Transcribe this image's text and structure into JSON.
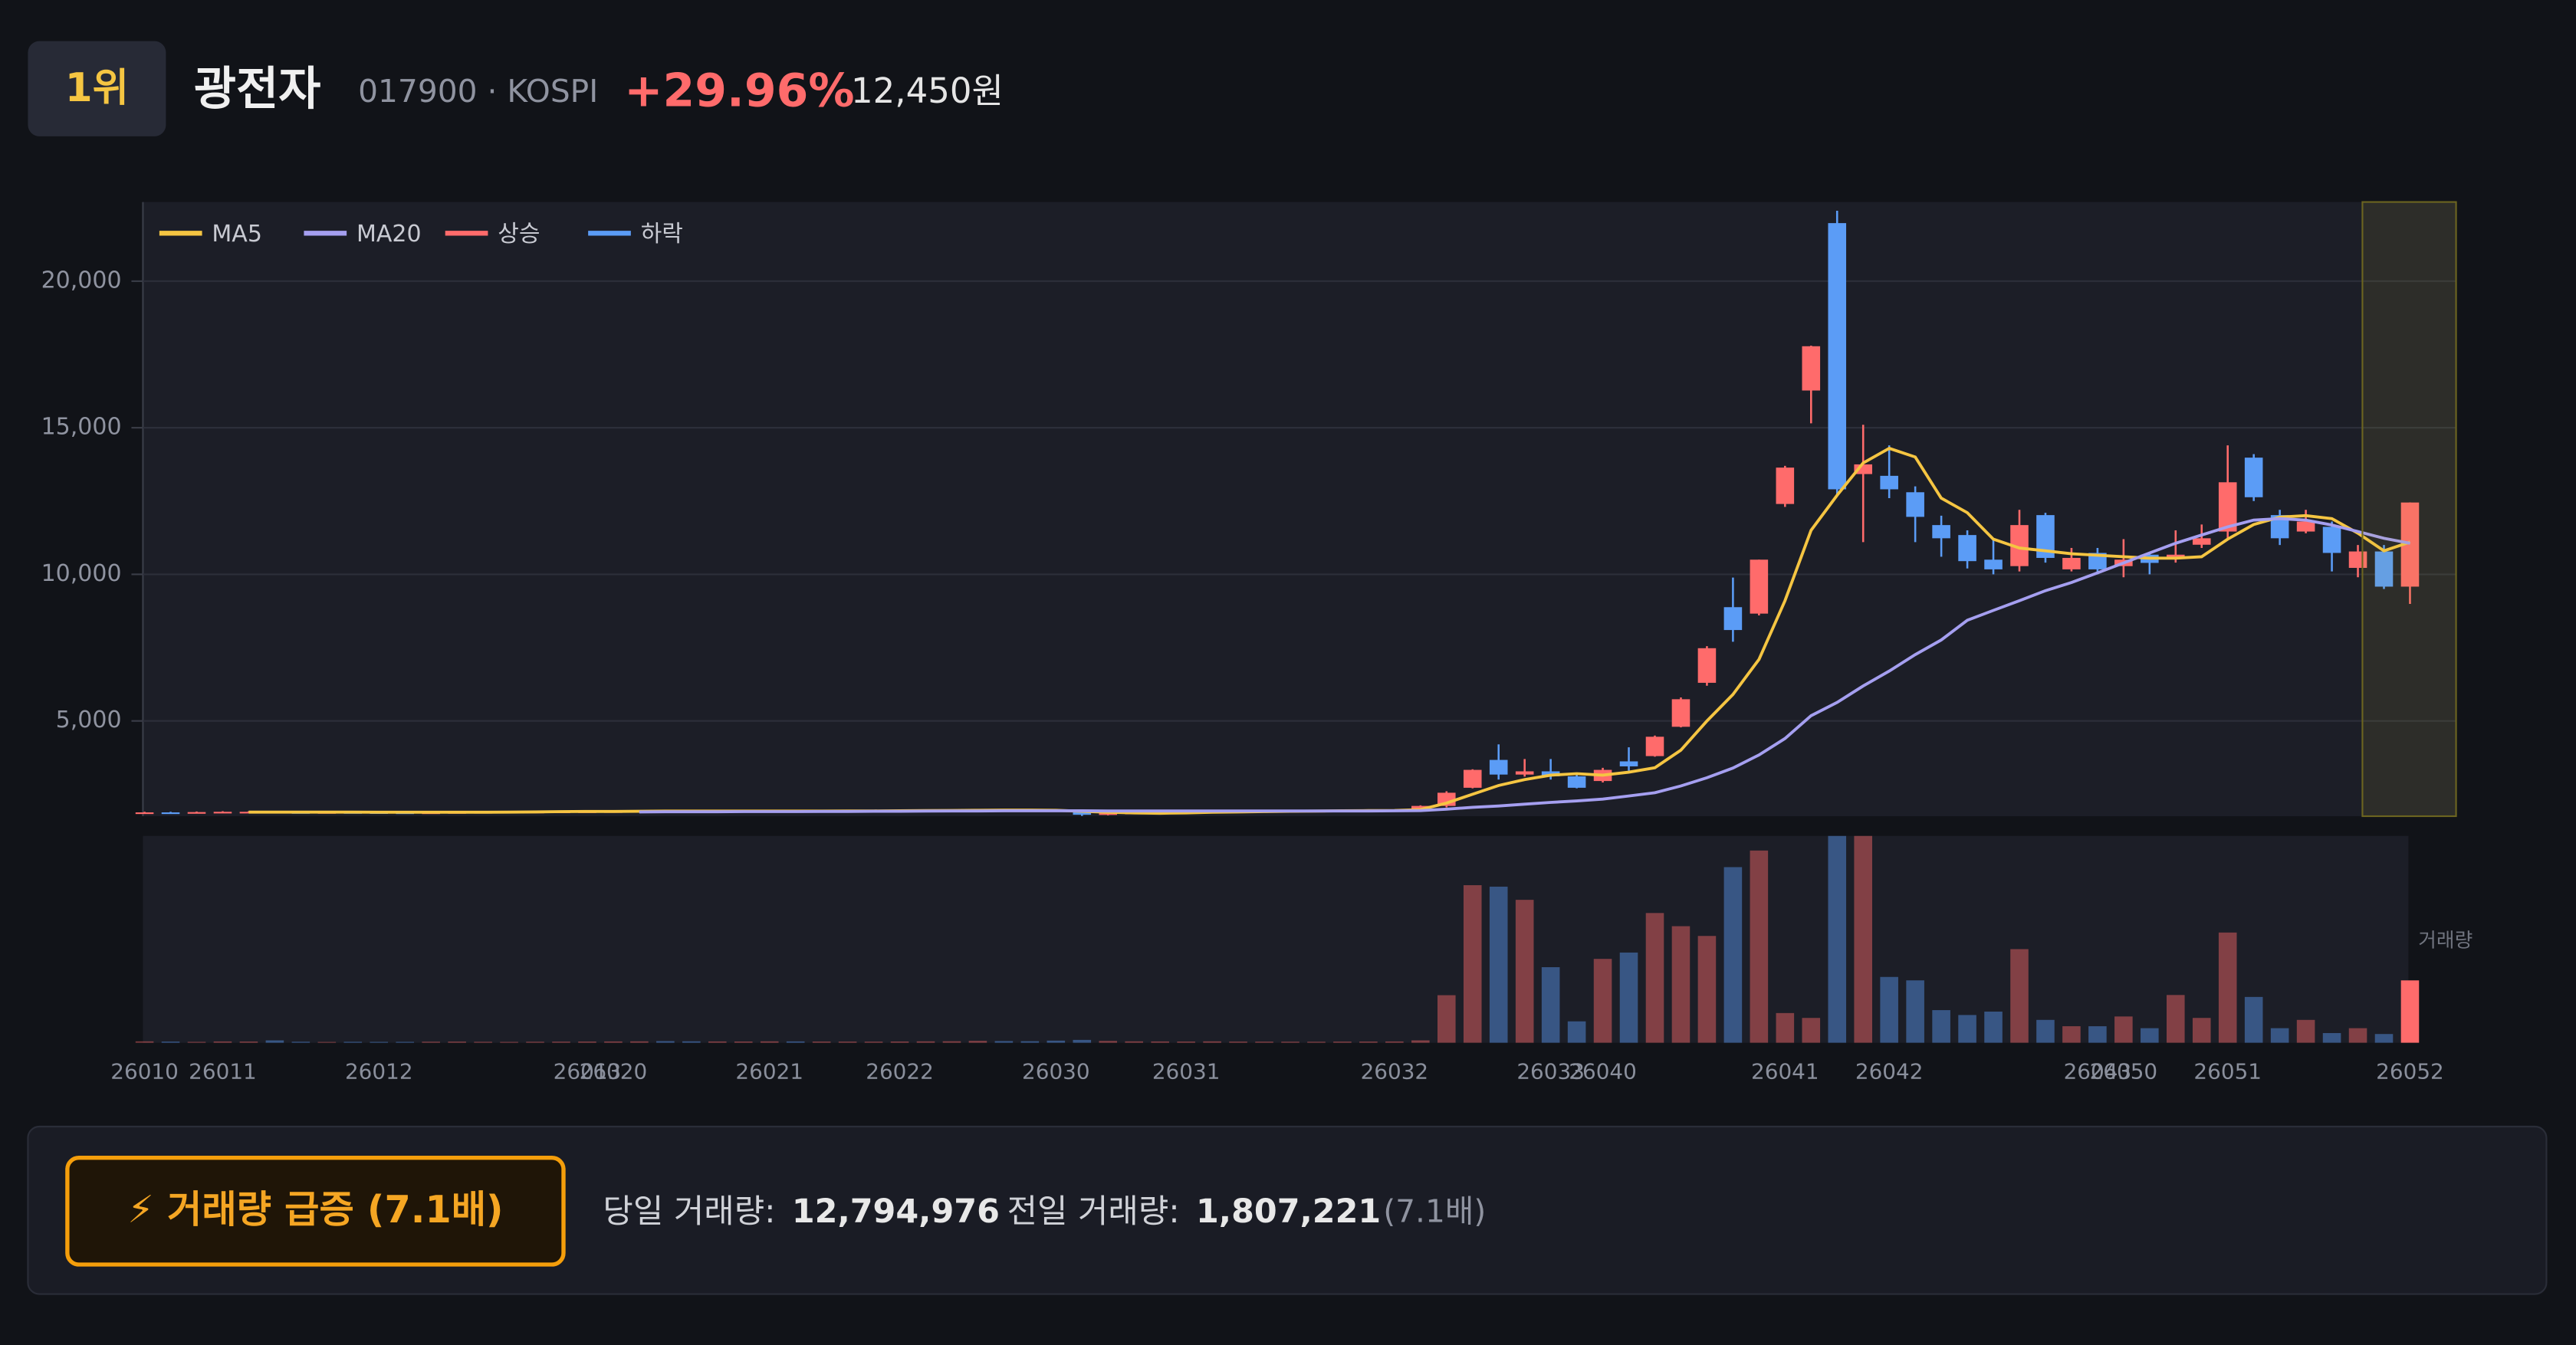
{
  "header": {
    "rank": "1위",
    "name": "광전자",
    "code": "017900 · KOSPI",
    "change": "+29.96%",
    "price": "12,450원"
  },
  "chart_data": {
    "type": "candlestick",
    "legend": [
      "MA5",
      "MA20",
      "상승",
      "하락"
    ],
    "up_color": "#ff6b6b",
    "down_color": "#5b9cf6",
    "ma5_color": "#f5c542",
    "ma20_color": "#a59ff0",
    "categories": [
      "26010",
      null,
      null,
      "26011",
      null,
      null,
      null,
      null,
      null,
      "26012",
      null,
      null,
      null,
      null,
      null,
      null,
      null,
      "26013",
      "26020",
      null,
      null,
      null,
      null,
      null,
      "26021",
      null,
      null,
      null,
      null,
      "26022",
      null,
      null,
      null,
      null,
      null,
      "26030",
      null,
      null,
      null,
      null,
      "26031",
      null,
      null,
      null,
      null,
      null,
      null,
      null,
      "26032",
      null,
      null,
      null,
      null,
      null,
      "26033",
      null,
      "26040",
      null,
      null,
      null,
      null,
      null,
      null,
      "26041",
      null,
      null,
      null,
      "26042",
      null,
      null,
      null,
      null,
      null,
      null,
      null,
      "26043",
      "26050",
      null,
      null,
      null,
      "26051",
      null,
      null,
      null,
      null,
      null,
      null,
      "26052"
    ],
    "open": [
      1870,
      1880,
      1870,
      1890,
      1900,
      1900,
      1890,
      1880,
      1890,
      1885,
      1880,
      1875,
      1880,
      1890,
      1895,
      1900,
      1905,
      1910,
      1915,
      1920,
      1925,
      1920,
      1915,
      1920,
      1925,
      1930,
      1925,
      1930,
      1935,
      1940,
      1945,
      1950,
      1960,
      1965,
      1955,
      1950,
      1920,
      1800,
      1850,
      1870,
      1880,
      1900,
      1910,
      1920,
      1925,
      1930,
      1935,
      1940,
      1945,
      1950,
      2100,
      2720,
      3670,
      3170,
      3280,
      3110,
      2950,
      3620,
      3800,
      4800,
      6300,
      8880,
      8660,
      12400,
      16270,
      21980,
      13420,
      13360,
      12800,
      11680,
      11340,
      10500,
      10280,
      12020,
      10170,
      10730,
      10280,
      10670,
      10560,
      11010,
      11460,
      13980,
      12020,
      11460,
      11620,
      10220,
      10780,
      9580
    ],
    "high": [
      1900,
      1900,
      1910,
      1920,
      1920,
      1920,
      1910,
      1910,
      1910,
      1905,
      1900,
      1900,
      1910,
      1915,
      1920,
      1925,
      1930,
      1935,
      1940,
      1945,
      1945,
      1940,
      1940,
      1945,
      1950,
      1950,
      1950,
      1955,
      1960,
      1965,
      1970,
      1980,
      1985,
      1985,
      1975,
      1970,
      1940,
      1870,
      1890,
      1900,
      1920,
      1930,
      1940,
      1945,
      1950,
      1955,
      1960,
      1965,
      1970,
      2120,
      2600,
      3350,
      4200,
      3700,
      3700,
      3200,
      3400,
      4100,
      4500,
      5800,
      7550,
      9890,
      10500,
      13700,
      17800,
      22400,
      15100,
      14400,
      13000,
      12000,
      11500,
      11200,
      12200,
      12100,
      10900,
      10900,
      11200,
      10700,
      11500,
      11700,
      14400,
      14100,
      12200,
      12200,
      11800,
      11000,
      11000,
      12450
    ],
    "low": [
      1850,
      1850,
      1850,
      1870,
      1880,
      1870,
      1860,
      1860,
      1865,
      1860,
      1855,
      1855,
      1860,
      1870,
      1875,
      1880,
      1885,
      1890,
      1895,
      1900,
      1900,
      1895,
      1895,
      1900,
      1905,
      1905,
      1905,
      1910,
      1915,
      1920,
      1925,
      1930,
      1940,
      1935,
      1930,
      1900,
      1760,
      1780,
      1830,
      1850,
      1860,
      1880,
      1890,
      1900,
      1905,
      1910,
      1915,
      1920,
      1925,
      1930,
      2050,
      2700,
      3000,
      3100,
      3000,
      2700,
      2900,
      3300,
      3780,
      4780,
      6200,
      7700,
      8600,
      12300,
      15150,
      12700,
      11100,
      12600,
      11100,
      10600,
      10200,
      10000,
      10100,
      10400,
      10100,
      10000,
      9900,
      10000,
      10400,
      10900,
      11200,
      12500,
      11000,
      11400,
      10100,
      9900,
      9500,
      8990
    ],
    "close": [
      1880,
      1870,
      1890,
      1900,
      1900,
      1890,
      1880,
      1890,
      1885,
      1880,
      1875,
      1880,
      1890,
      1895,
      1900,
      1905,
      1910,
      1915,
      1920,
      1925,
      1920,
      1915,
      1920,
      1925,
      1930,
      1925,
      1930,
      1935,
      1940,
      1945,
      1950,
      1960,
      1965,
      1955,
      1950,
      1920,
      1800,
      1850,
      1870,
      1880,
      1900,
      1910,
      1920,
      1925,
      1930,
      1935,
      1940,
      1945,
      1950,
      2100,
      2550,
      3330,
      3170,
      3280,
      3110,
      2720,
      3330,
      3450,
      4460,
      5740,
      7480,
      8100,
      10500,
      13640,
      17780,
      12900,
      13750,
      12900,
      11960,
      11230,
      10450,
      10170,
      11680,
      10560,
      10560,
      10170,
      10500,
      10390,
      10670,
      11230,
      13140,
      12630,
      11230,
      11800,
      10730,
      10780,
      9580,
      12450
    ],
    "ma5": [
      null,
      null,
      null,
      null,
      1888,
      1890,
      1892,
      1892,
      1889,
      1885,
      1882,
      1882,
      1882,
      1886,
      1892,
      1898,
      1905,
      1910,
      1915,
      1920,
      1921,
      1921,
      1921,
      1921,
      1922,
      1923,
      1926,
      1929,
      1932,
      1936,
      1942,
      1948,
      1954,
      1956,
      1956,
      1950,
      1918,
      1885,
      1864,
      1850,
      1860,
      1882,
      1896,
      1907,
      1917,
      1926,
      1934,
      1939,
      1944,
      1972,
      2200,
      2500,
      2800,
      3000,
      3150,
      3200,
      3150,
      3250,
      3400,
      4000,
      5000,
      5900,
      7100,
      9100,
      11500,
      12700,
      13800,
      14300,
      14000,
      12600,
      12100,
      11200,
      10900,
      10800,
      10700,
      10650,
      10600,
      10550,
      10550,
      10600,
      11200,
      11700,
      11950,
      12000,
      11900,
      11400,
      10800,
      11100
    ],
    "ma20": [
      null,
      null,
      null,
      null,
      null,
      null,
      null,
      null,
      null,
      null,
      null,
      null,
      null,
      null,
      null,
      null,
      null,
      null,
      null,
      1897,
      1899,
      1901,
      1903,
      1905,
      1907,
      1908,
      1910,
      1913,
      1916,
      1919,
      1923,
      1927,
      1931,
      1934,
      1937,
      1937,
      1933,
      1931,
      1929,
      1928,
      1928,
      1929,
      1929,
      1930,
      1930,
      1930,
      1931,
      1932,
      1933,
      1942,
      1990,
      2050,
      2100,
      2160,
      2220,
      2270,
      2330,
      2440,
      2550,
      2780,
      3060,
      3390,
      3840,
      4400,
      5180,
      5630,
      6190,
      6700,
      7260,
      7760,
      8430,
      8770,
      9100,
      9440,
      9720,
      10050,
      10390,
      10730,
      11060,
      11340,
      11620,
      11850,
      11900,
      11850,
      11680,
      11460,
      11230,
      11060
    ],
    "volume": [
      300000,
      250000,
      200000,
      280000,
      260000,
      500000,
      220000,
      180000,
      210000,
      190000,
      200000,
      230000,
      250000,
      210000,
      190000,
      220000,
      240000,
      260000,
      280000,
      300000,
      350000,
      310000,
      280000,
      270000,
      300000,
      290000,
      260000,
      250000,
      240000,
      270000,
      300000,
      320000,
      400000,
      360000,
      330000,
      450000,
      600000,
      380000,
      300000,
      280000,
      260000,
      300000,
      250000,
      240000,
      230000,
      220000,
      250000,
      260000,
      280000,
      500000,
      9760000,
      32300000,
      32000000,
      29300000,
      15500000,
      4400000,
      17200000,
      18500000,
      26600000,
      23900000,
      21900000,
      36000000,
      39400000,
      6100000,
      5100000,
      55000000,
      48000000,
      13500000,
      12800000,
      6700000,
      5700000,
      6400000,
      19200000,
      4700000,
      3400000,
      3400000,
      5400000,
      3000000,
      9800000,
      5100000,
      22600000,
      9400000,
      3000000,
      4700000,
      2000000,
      3000000,
      1807221,
      12794976
    ],
    "volume_label": "거래량",
    "ylim": [
      1750,
      22700
    ],
    "yticks": [
      {
        "value": 5000,
        "label": "5,000"
      },
      {
        "value": 10000,
        "label": "10,000"
      },
      {
        "value": 15000,
        "label": "15,000"
      },
      {
        "value": 20000,
        "label": "20,000"
      }
    ],
    "volume_ylim": [
      0,
      42400000
    ],
    "grid": true
  },
  "footer": {
    "badge": "⚡ 거래량 급증 (7.1배)",
    "today_label": "당일 거래량:",
    "today_value": "12,794,976",
    "prev_label": "전일 거래량:",
    "prev_value": "1,807,221",
    "ratio": "(7.1배)"
  }
}
